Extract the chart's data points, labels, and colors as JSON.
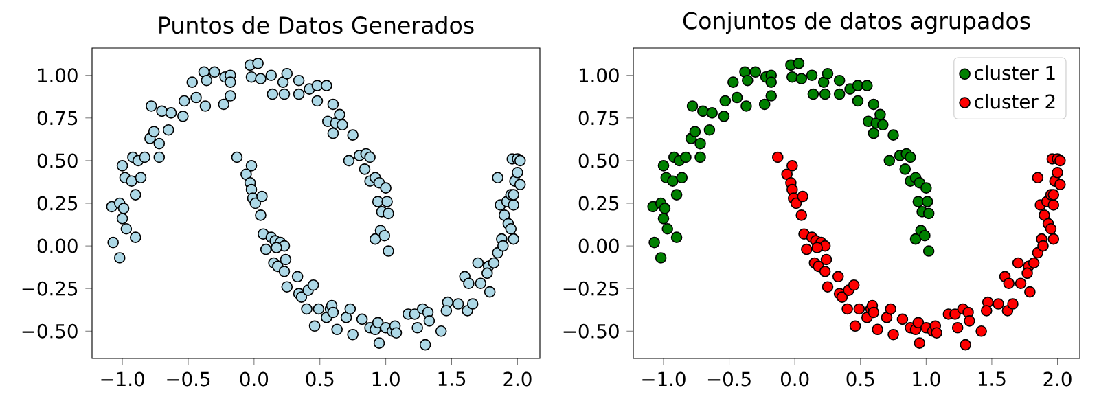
{
  "chart_data": [
    {
      "type": "scatter",
      "title": "Puntos de Datos Generados",
      "xlim": [
        -1.23,
        2.17
      ],
      "ylim": [
        -0.66,
        1.16
      ],
      "marker": "circle",
      "xticks": [
        {
          "value": -1,
          "label": "−1.0"
        },
        {
          "value": -0.5,
          "label": "−0.5"
        },
        {
          "value": 0,
          "label": "0.0"
        },
        {
          "value": 0.5,
          "label": "0.5"
        },
        {
          "value": 1,
          "label": "1.0"
        },
        {
          "value": 1.5,
          "label": "1.5"
        },
        {
          "value": 2,
          "label": "2.0"
        }
      ],
      "yticks": [
        {
          "value": -0.5,
          "label": "−0.50"
        },
        {
          "value": -0.25,
          "label": "−0.25"
        },
        {
          "value": 0,
          "label": "0.00"
        },
        {
          "value": 0.25,
          "label": "0.25"
        },
        {
          "value": 0.5,
          "label": "0.50"
        },
        {
          "value": 0.75,
          "label": "0.75"
        },
        {
          "value": 1,
          "label": "1.00"
        }
      ],
      "series": [
        {
          "color": "#add8e6",
          "x": [
            -1.07,
            -1.02,
            -1.08,
            -1.02,
            -1.0,
            -0.99,
            -0.97,
            -0.9,
            -1.0,
            -0.98,
            -0.93,
            -0.9,
            -0.92,
            -0.88,
            -0.83,
            -0.86,
            -0.79,
            -0.76,
            -0.72,
            -0.72,
            -0.78,
            -0.7,
            -0.65,
            -0.63,
            -0.53,
            -0.54,
            -0.47,
            -0.44,
            -0.37,
            -0.38,
            -0.36,
            -0.3,
            -0.22,
            -0.18,
            -0.18,
            -0.23,
            -0.18,
            -0.03,
            -0.02,
            0.03,
            0.05,
            0.13,
            0.14,
            0.22,
            0.25,
            0.23,
            0.34,
            0.34,
            0.42,
            0.48,
            0.55,
            0.48,
            0.56,
            0.6,
            0.62,
            0.65,
            0.6,
            0.67,
            0.75,
            0.72,
            0.8,
            0.85,
            0.88,
            0.84,
            0.88,
            0.92,
            0.95,
            1.0,
            0.94,
            0.97,
            1.01,
            1.02,
            0.92,
            0.96,
            0.99,
            1.02,
            -0.13,
            -0.02,
            -0.06,
            -0.03,
            -0.02,
            -0.01,
            0.01,
            0.06,
            0.05,
            0.07,
            0.09,
            0.13,
            0.16,
            0.2,
            0.23,
            0.17,
            0.15,
            0.18,
            0.24,
            0.23,
            0.25,
            0.33,
            0.34,
            0.36,
            0.41,
            0.45,
            0.4,
            0.49,
            0.46,
            0.55,
            0.58,
            0.59,
            0.6,
            0.63,
            0.7,
            0.73,
            0.75,
            0.82,
            0.88,
            0.92,
            0.94,
            0.95,
            1.0,
            1.05,
            1.07,
            1.08,
            1.17,
            1.22,
            1.24,
            1.28,
            1.3,
            1.32,
            1.33,
            1.42,
            1.47,
            1.46,
            1.55,
            1.6,
            1.62,
            1.63,
            1.66,
            1.7,
            1.72,
            1.78,
            1.79,
            1.77,
            1.82,
            1.85,
            1.88,
            1.89,
            1.85,
            1.87,
            1.92,
            1.9,
            1.93,
            1.95,
            1.97,
            1.95,
            1.98,
            1.96,
            2.0,
            2.02,
            2.0,
            2.02,
            1.97,
            1.97
          ],
          "values": [
            0.02,
            -0.07,
            0.23,
            0.25,
            0.16,
            0.22,
            0.1,
            0.05,
            0.47,
            0.4,
            0.38,
            0.3,
            0.52,
            0.5,
            0.52,
            0.4,
            0.63,
            0.67,
            0.6,
            0.52,
            0.82,
            0.79,
            0.68,
            0.78,
            0.85,
            0.76,
            0.96,
            0.87,
            0.82,
            1.02,
            0.97,
            1.02,
            0.99,
            1.0,
            0.88,
            0.83,
            0.96,
            1.06,
            0.99,
            1.07,
            0.98,
            1.0,
            0.89,
            0.96,
            1.01,
            0.89,
            0.97,
            0.89,
            0.92,
            0.94,
            0.94,
            0.85,
            0.73,
            0.83,
            0.72,
            0.77,
            0.66,
            0.71,
            0.65,
            0.5,
            0.53,
            0.54,
            0.52,
            0.45,
            0.38,
            0.4,
            0.37,
            0.34,
            0.26,
            0.2,
            0.26,
            0.19,
            0.04,
            0.09,
            0.06,
            -0.03,
            0.52,
            0.47,
            0.42,
            0.37,
            0.33,
            0.28,
            0.25,
            0.29,
            0.18,
            0.07,
            -0.02,
            0.05,
            0.03,
            0.02,
            0.0,
            -0.01,
            -0.1,
            -0.12,
            -0.08,
            -0.15,
            -0.24,
            -0.18,
            -0.28,
            -0.3,
            -0.26,
            -0.23,
            -0.37,
            -0.37,
            -0.47,
            -0.42,
            -0.37,
            -0.35,
            -0.39,
            -0.49,
            -0.42,
            -0.37,
            -0.52,
            -0.43,
            -0.48,
            -0.49,
            -0.45,
            -0.57,
            -0.48,
            -0.5,
            -0.47,
            -0.51,
            -0.4,
            -0.4,
            -0.48,
            -0.37,
            -0.58,
            -0.39,
            -0.44,
            -0.5,
            -0.33,
            -0.38,
            -0.34,
            -0.18,
            -0.38,
            -0.22,
            -0.34,
            -0.1,
            -0.22,
            -0.12,
            -0.27,
            -0.16,
            -0.1,
            -0.04,
            0.04,
            0.0,
            0.4,
            0.24,
            0.26,
            0.18,
            0.13,
            0.1,
            0.04,
            0.3,
            0.38,
            0.51,
            0.51,
            0.5,
            0.43,
            0.36,
            0.24,
            0.3
          ]
        }
      ]
    },
    {
      "type": "scatter",
      "title": "Conjuntos de datos agrupados",
      "xlim": [
        -1.23,
        2.17
      ],
      "ylim": [
        -0.66,
        1.16
      ],
      "marker": "circle",
      "legend": "top right",
      "xticks": [
        {
          "value": -1,
          "label": "−1.0"
        },
        {
          "value": -0.5,
          "label": "−0.5"
        },
        {
          "value": 0,
          "label": "0.0"
        },
        {
          "value": 0.5,
          "label": "0.5"
        },
        {
          "value": 1,
          "label": "1.0"
        },
        {
          "value": 1.5,
          "label": "1.5"
        },
        {
          "value": 2,
          "label": "2.0"
        }
      ],
      "yticks": [
        {
          "value": -0.5,
          "label": "−0.50"
        },
        {
          "value": -0.25,
          "label": "−0.25"
        },
        {
          "value": 0,
          "label": "0.00"
        },
        {
          "value": 0.25,
          "label": "0.25"
        },
        {
          "value": 0.5,
          "label": "0.50"
        },
        {
          "value": 0.75,
          "label": "0.75"
        },
        {
          "value": 1,
          "label": "1.00"
        }
      ],
      "series": [
        {
          "name": "cluster 1",
          "color": "#008000",
          "x": [
            -1.07,
            -1.02,
            -1.08,
            -1.02,
            -1.0,
            -0.99,
            -0.97,
            -0.9,
            -1.0,
            -0.98,
            -0.93,
            -0.9,
            -0.92,
            -0.88,
            -0.83,
            -0.86,
            -0.79,
            -0.76,
            -0.72,
            -0.72,
            -0.78,
            -0.7,
            -0.65,
            -0.63,
            -0.53,
            -0.54,
            -0.47,
            -0.44,
            -0.37,
            -0.38,
            -0.36,
            -0.3,
            -0.22,
            -0.18,
            -0.18,
            -0.23,
            -0.18,
            -0.03,
            -0.02,
            0.03,
            0.05,
            0.13,
            0.14,
            0.22,
            0.25,
            0.23,
            0.34,
            0.34,
            0.42,
            0.48,
            0.55,
            0.48,
            0.56,
            0.6,
            0.62,
            0.65,
            0.6,
            0.67,
            0.75,
            0.72,
            0.8,
            0.85,
            0.88,
            0.84,
            0.88,
            0.92,
            0.95,
            1.0,
            0.94,
            0.97,
            1.01,
            1.02,
            0.92,
            0.96,
            0.99,
            1.02
          ],
          "values": [
            0.02,
            -0.07,
            0.23,
            0.25,
            0.16,
            0.22,
            0.1,
            0.05,
            0.47,
            0.4,
            0.38,
            0.3,
            0.52,
            0.5,
            0.52,
            0.4,
            0.63,
            0.67,
            0.6,
            0.52,
            0.82,
            0.79,
            0.68,
            0.78,
            0.85,
            0.76,
            0.96,
            0.87,
            0.82,
            1.02,
            0.97,
            1.02,
            0.99,
            1.0,
            0.88,
            0.83,
            0.96,
            1.06,
            0.99,
            1.07,
            0.98,
            1.0,
            0.89,
            0.96,
            1.01,
            0.89,
            0.97,
            0.89,
            0.92,
            0.94,
            0.94,
            0.85,
            0.73,
            0.83,
            0.72,
            0.77,
            0.66,
            0.71,
            0.65,
            0.5,
            0.53,
            0.54,
            0.52,
            0.45,
            0.38,
            0.4,
            0.37,
            0.34,
            0.26,
            0.2,
            0.26,
            0.19,
            0.04,
            0.09,
            0.06,
            -0.03
          ]
        },
        {
          "name": "cluster 2",
          "color": "#ff0000",
          "x": [
            -0.13,
            -0.02,
            -0.06,
            -0.03,
            -0.02,
            -0.01,
            0.01,
            0.06,
            0.05,
            0.07,
            0.09,
            0.13,
            0.16,
            0.2,
            0.23,
            0.17,
            0.15,
            0.18,
            0.24,
            0.23,
            0.25,
            0.33,
            0.34,
            0.36,
            0.41,
            0.45,
            0.4,
            0.49,
            0.46,
            0.55,
            0.58,
            0.59,
            0.6,
            0.63,
            0.7,
            0.73,
            0.75,
            0.82,
            0.88,
            0.92,
            0.94,
            0.95,
            1.0,
            1.05,
            1.07,
            1.08,
            1.17,
            1.22,
            1.24,
            1.28,
            1.3,
            1.32,
            1.33,
            1.42,
            1.47,
            1.46,
            1.55,
            1.6,
            1.62,
            1.63,
            1.66,
            1.7,
            1.72,
            1.78,
            1.79,
            1.77,
            1.82,
            1.85,
            1.88,
            1.89,
            1.85,
            1.87,
            1.92,
            1.9,
            1.93,
            1.95,
            1.97,
            1.95,
            1.98,
            1.96,
            2.0,
            2.02,
            2.0,
            2.02,
            1.97,
            1.97
          ],
          "values": [
            0.52,
            0.47,
            0.42,
            0.37,
            0.33,
            0.28,
            0.25,
            0.29,
            0.18,
            0.07,
            -0.02,
            0.05,
            0.03,
            0.02,
            0.0,
            -0.01,
            -0.1,
            -0.12,
            -0.08,
            -0.15,
            -0.24,
            -0.18,
            -0.28,
            -0.3,
            -0.26,
            -0.23,
            -0.37,
            -0.37,
            -0.47,
            -0.42,
            -0.37,
            -0.35,
            -0.39,
            -0.49,
            -0.42,
            -0.37,
            -0.52,
            -0.43,
            -0.48,
            -0.49,
            -0.45,
            -0.57,
            -0.48,
            -0.5,
            -0.47,
            -0.51,
            -0.4,
            -0.4,
            -0.48,
            -0.37,
            -0.58,
            -0.39,
            -0.44,
            -0.5,
            -0.33,
            -0.38,
            -0.34,
            -0.18,
            -0.38,
            -0.22,
            -0.34,
            -0.1,
            -0.22,
            -0.12,
            -0.27,
            -0.16,
            -0.1,
            -0.04,
            0.04,
            0.0,
            0.4,
            0.24,
            0.26,
            0.18,
            0.13,
            0.1,
            0.04,
            0.3,
            0.38,
            0.51,
            0.51,
            0.5,
            0.43,
            0.36,
            0.24,
            0.3
          ]
        }
      ]
    }
  ]
}
